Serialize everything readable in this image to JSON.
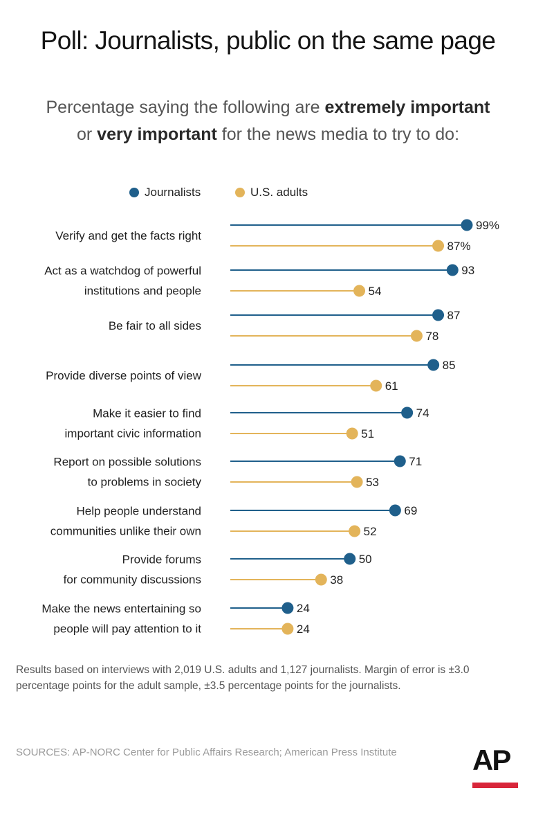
{
  "title": "Poll: Journalists, public on the same page",
  "subtitle": {
    "part1": "Percentage saying the following are ",
    "bold1": "extremely important",
    "part2": "or ",
    "bold2": "very important",
    "part3": " for the news media to try to do:"
  },
  "legend": {
    "journalists": "Journalists",
    "adults": "U.S. adults"
  },
  "colors": {
    "journalists": "#1f5f8b",
    "adults": "#e3b45a"
  },
  "chart_data": {
    "type": "dot",
    "categories": [
      "Verify and get the facts right",
      "Act as a watchdog of powerful institutions and people",
      "Be fair to all sides",
      "Provide diverse points of view",
      "Make it easier to find important civic information",
      "Report on possible solutions to problems in society",
      "Help people understand communities unlike their own",
      "Provide forums for community discussions",
      "Make the news entertaining so people will pay attention to it"
    ],
    "category_lines": [
      [
        "Verify and get the facts right"
      ],
      [
        "Act as a watchdog of powerful",
        "institutions and people"
      ],
      [
        "Be fair to all sides"
      ],
      [
        "Provide diverse points of view"
      ],
      [
        "Make it easier to find",
        "important civic information"
      ],
      [
        "Report on possible solutions",
        "to problems in society"
      ],
      [
        "Help people understand",
        "communities unlike their own"
      ],
      [
        "Provide forums",
        "for community discussions"
      ],
      [
        "Make the news entertaining so",
        "people will pay attention to it"
      ]
    ],
    "series": [
      {
        "name": "Journalists",
        "values": [
          99,
          93,
          87,
          85,
          74,
          71,
          69,
          50,
          24
        ],
        "labels": [
          "99%",
          "93",
          "87",
          "85",
          "74",
          "71",
          "69",
          "50",
          "24"
        ]
      },
      {
        "name": "U.S. adults",
        "values": [
          87,
          54,
          78,
          61,
          51,
          53,
          52,
          38,
          24
        ],
        "labels": [
          "87%",
          "54",
          "78",
          "61",
          "51",
          "53",
          "52",
          "38",
          "24"
        ]
      }
    ],
    "unit": "%",
    "xlim": [
      0,
      100
    ],
    "grid": false
  },
  "notes": "Results based on interviews with 2,019 U.S. adults and 1,127 journalists. Margin of error is  ±3.0 percentage points for the adult sample, ±3.5 percentage points for the journalists.",
  "sources": "SOURCES: AP-NORC Center for Public Affairs Research; American Press Institute",
  "logo": "AP"
}
